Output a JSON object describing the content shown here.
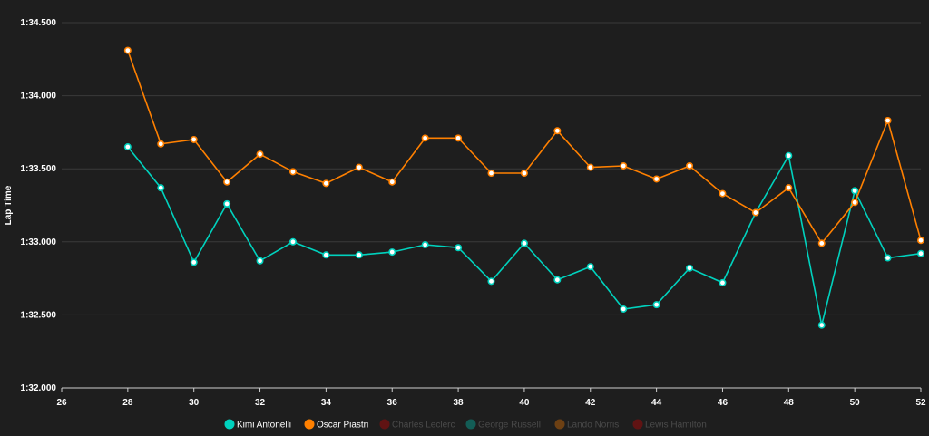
{
  "chart_data": {
    "type": "line",
    "ylabel": "Lap Time",
    "xlabel": "",
    "xlim": [
      26,
      52
    ],
    "ylim_seconds": [
      92.0,
      94.5
    ],
    "x_ticks": [
      "26",
      "28",
      "30",
      "32",
      "34",
      "36",
      "38",
      "40",
      "42",
      "44",
      "46",
      "48",
      "50",
      "52"
    ],
    "y_ticks": [
      {
        "label": "1:32.000",
        "value": 92.0
      },
      {
        "label": "1:32.500",
        "value": 92.5
      },
      {
        "label": "1:33.000",
        "value": 93.0
      },
      {
        "label": "1:33.500",
        "value": 93.5
      },
      {
        "label": "1:34.000",
        "value": 94.0
      },
      {
        "label": "1:34.500",
        "value": 94.5
      }
    ],
    "grid": "horizontal",
    "legend_position": "bottom",
    "series": [
      {
        "name": "Kimi Antonelli",
        "color": "#00d2be",
        "visible": true,
        "x": [
          28,
          29,
          30,
          31,
          32,
          33,
          34,
          35,
          36,
          37,
          38,
          39,
          40,
          41,
          42,
          43,
          44,
          45,
          46,
          47,
          48,
          49,
          50,
          51,
          52
        ],
        "values": [
          93.65,
          93.37,
          92.86,
          93.26,
          92.87,
          93.0,
          92.91,
          92.91,
          92.93,
          92.98,
          92.96,
          92.73,
          92.99,
          92.74,
          92.83,
          92.54,
          92.57,
          92.82,
          92.72,
          93.2,
          93.59,
          92.43,
          93.35,
          92.89,
          92.92
        ]
      },
      {
        "name": "Oscar Piastri",
        "color": "#ff8000",
        "visible": true,
        "x": [
          28,
          29,
          30,
          31,
          32,
          33,
          34,
          35,
          36,
          37,
          38,
          39,
          40,
          41,
          42,
          43,
          44,
          45,
          46,
          47,
          48,
          49,
          50,
          51,
          52
        ],
        "values": [
          94.31,
          93.67,
          93.7,
          93.41,
          93.6,
          93.48,
          93.4,
          93.51,
          93.41,
          93.71,
          93.71,
          93.47,
          93.47,
          93.76,
          93.51,
          93.52,
          93.43,
          93.52,
          93.33,
          93.2,
          93.37,
          92.99,
          93.27,
          93.83,
          93.01
        ]
      },
      {
        "name": "Charles Leclerc",
        "color": "#dc0000",
        "visible": false,
        "x": [],
        "values": []
      },
      {
        "name": "George Russell",
        "color": "#00d2be",
        "visible": false,
        "x": [],
        "values": []
      },
      {
        "name": "Lando Norris",
        "color": "#ff8000",
        "visible": false,
        "x": [],
        "values": []
      },
      {
        "name": "Lewis Hamilton",
        "color": "#dc0000",
        "visible": false,
        "x": [],
        "values": []
      }
    ]
  }
}
